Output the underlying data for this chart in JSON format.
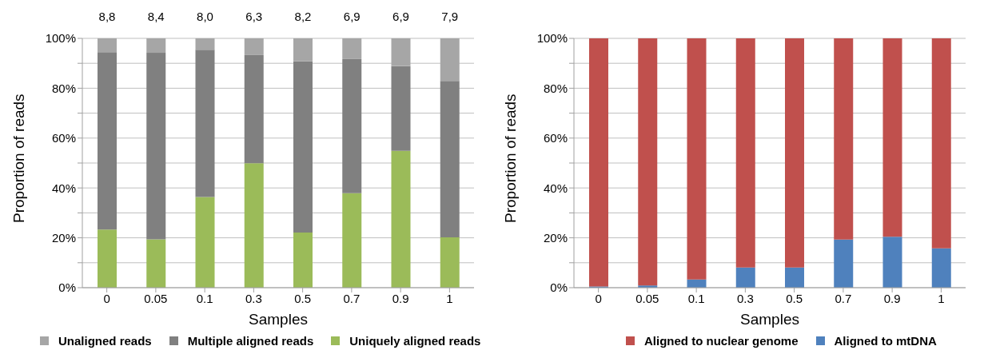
{
  "chart_data": [
    {
      "type": "bar",
      "stacked": true,
      "xlabel": "Samples",
      "ylabel": "Proportion of reads",
      "categories": [
        "0",
        "0.05",
        "0.1",
        "0.3",
        "0.5",
        "0.7",
        "0.9",
        "1"
      ],
      "series": [
        {
          "name": "Uniquely aligned reads",
          "color": "#9bbb59",
          "values": [
            23.3,
            19.4,
            36.4,
            49.9,
            22.1,
            37.9,
            54.9,
            20.2
          ]
        },
        {
          "name": "Multiple aligned reads",
          "color": "#808080",
          "values": [
            71.2,
            74.8,
            59.0,
            43.4,
            68.7,
            53.8,
            34.0,
            62.7
          ]
        },
        {
          "name": "Unaligned reads",
          "color": "#a6a6a6",
          "values": [
            5.5,
            5.8,
            4.6,
            6.7,
            9.2,
            8.3,
            11.1,
            17.1
          ]
        }
      ],
      "annotations": [
        "8,8",
        "8,4",
        "8,0",
        "6,3",
        "8,2",
        "6,9",
        "6,9",
        "7,9"
      ],
      "ylim": [
        0,
        100
      ],
      "yticks": [
        {
          "value": 0,
          "label": "0%"
        },
        {
          "value": 10,
          "label": null
        },
        {
          "value": 20,
          "label": "20%"
        },
        {
          "value": 30,
          "label": null
        },
        {
          "value": 40,
          "label": "40%"
        },
        {
          "value": 50,
          "label": null
        },
        {
          "value": 60,
          "label": "60%"
        },
        {
          "value": 70,
          "label": null
        },
        {
          "value": 80,
          "label": "80%"
        },
        {
          "value": 90,
          "label": null
        },
        {
          "value": 100,
          "label": "100%"
        }
      ],
      "grid": "y",
      "legend": "bottom"
    },
    {
      "type": "bar",
      "stacked": true,
      "xlabel": "Samples",
      "ylabel": "Proportion of reads",
      "categories": [
        "0",
        "0.05",
        "0.1",
        "0.3",
        "0.5",
        "0.7",
        "0.9",
        "1"
      ],
      "series": [
        {
          "name": "Aligned to mtDNA",
          "color": "#4f81bd",
          "values": [
            0.5,
            0.9,
            3.3,
            8.1,
            8.1,
            19.3,
            20.4,
            15.8
          ]
        },
        {
          "name": "Aligned to nuclear genome",
          "color": "#c0504d",
          "values": [
            99.5,
            99.1,
            96.7,
            91.9,
            91.9,
            80.7,
            79.6,
            84.2
          ]
        }
      ],
      "ylim": [
        0,
        100
      ],
      "yticks": [
        {
          "value": 0,
          "label": "0%"
        },
        {
          "value": 10,
          "label": null
        },
        {
          "value": 20,
          "label": "20%"
        },
        {
          "value": 30,
          "label": null
        },
        {
          "value": 40,
          "label": "40%"
        },
        {
          "value": 50,
          "label": null
        },
        {
          "value": 60,
          "label": "60%"
        },
        {
          "value": 70,
          "label": null
        },
        {
          "value": 80,
          "label": "80%"
        },
        {
          "value": 90,
          "label": null
        },
        {
          "value": 100,
          "label": "100%"
        }
      ],
      "grid": "y",
      "legend": "bottom"
    }
  ]
}
